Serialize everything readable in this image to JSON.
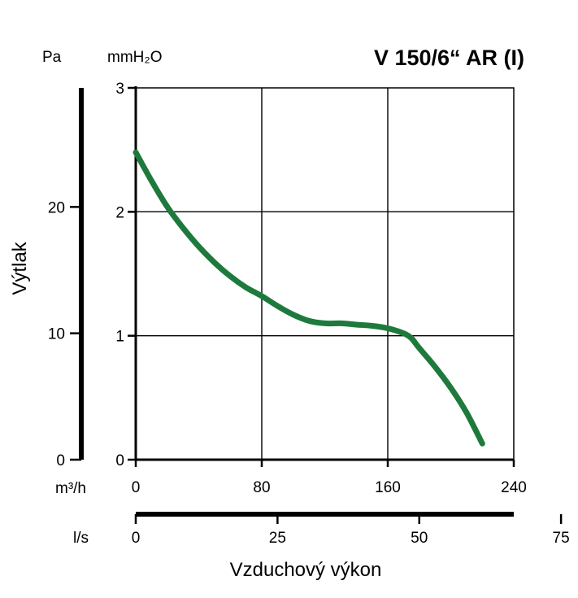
{
  "chart_data": {
    "type": "line",
    "title": "V 150/6“ AR (I)",
    "xlabel": "Vzduchový výkon",
    "ylabel": "Výtlak",
    "x_unit_primary": "m³/h",
    "x_unit_secondary": "l/s",
    "y_unit_primary": "mmH₂O",
    "y_unit_secondary": "Pa",
    "xlim": [
      0,
      240
    ],
    "ylim": [
      0,
      3
    ],
    "grid": true,
    "x_ticks": [
      "0",
      "80",
      "160",
      "240"
    ],
    "y_ticks": [
      "0",
      "1",
      "2",
      "3"
    ],
    "x_secondary_ticks": [
      "0",
      "25",
      "50",
      "75"
    ],
    "x_secondary_values": [
      0,
      25,
      50,
      75
    ],
    "y_secondary_ticks": [
      "0",
      "10",
      "20"
    ],
    "y_secondary_values": [
      0,
      10,
      20
    ],
    "series": [
      {
        "color": "#1e7a3c",
        "x": [
          0,
          10,
          20,
          30,
          40,
          50,
          60,
          70,
          80,
          90,
          100,
          110,
          120,
          130,
          140,
          150,
          160,
          170,
          175,
          180,
          190,
          200,
          210,
          220
        ],
        "y": [
          2.48,
          2.25,
          2.04,
          1.87,
          1.72,
          1.59,
          1.48,
          1.39,
          1.32,
          1.24,
          1.17,
          1.12,
          1.1,
          1.1,
          1.09,
          1.08,
          1.06,
          1.02,
          0.98,
          0.9,
          0.75,
          0.58,
          0.38,
          0.13
        ]
      }
    ]
  }
}
